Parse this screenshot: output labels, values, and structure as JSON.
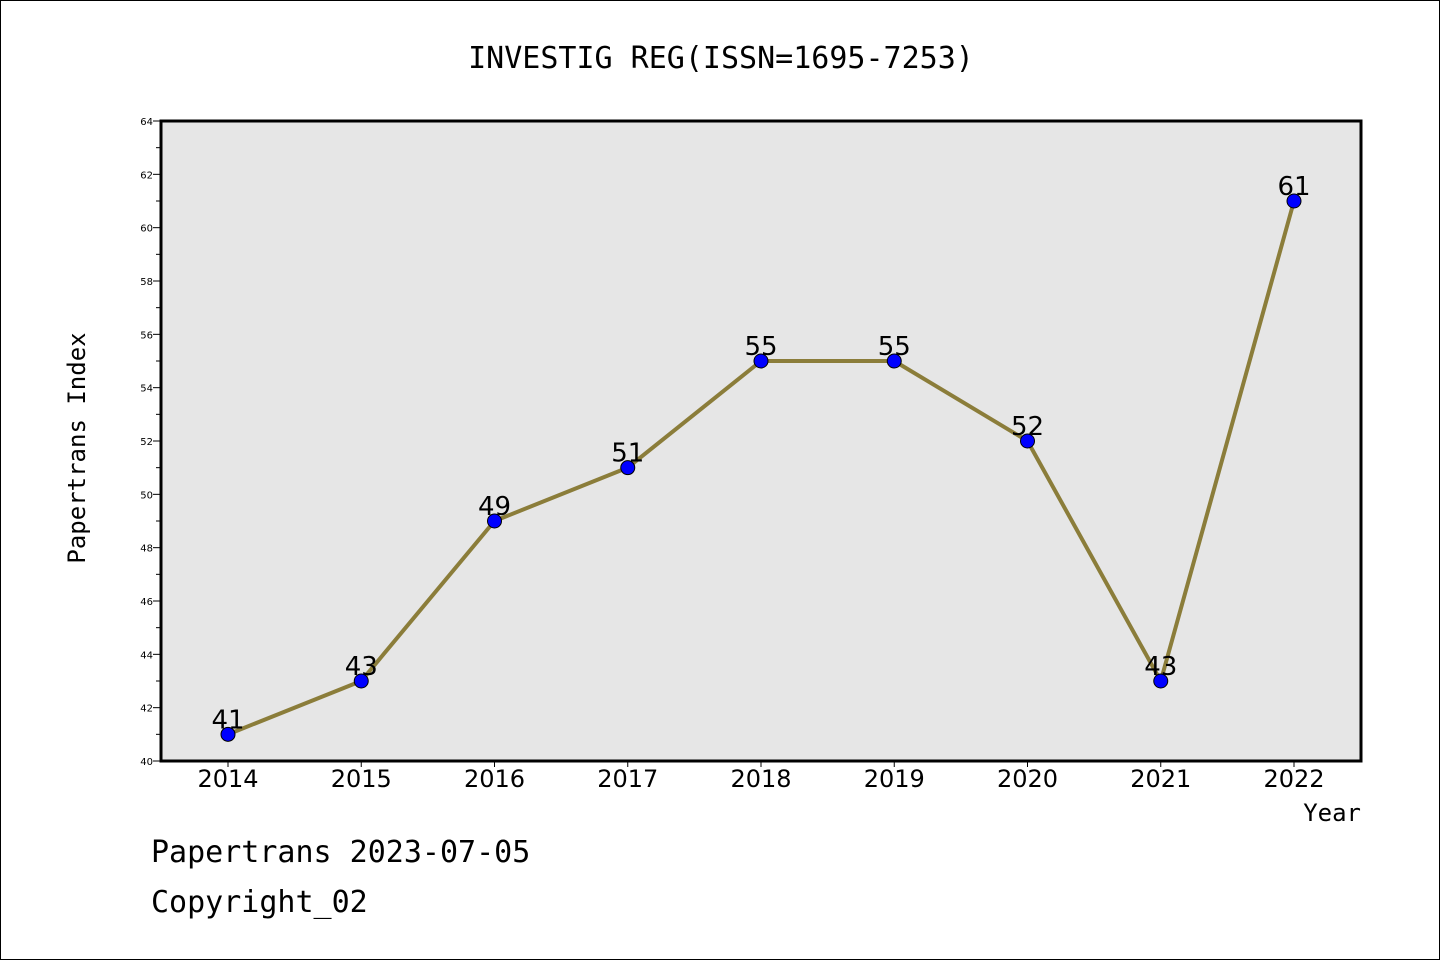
{
  "chart_data": {
    "type": "line",
    "title": "INVESTIG REG(ISSN=1695-7253)",
    "xlabel": "Year",
    "ylabel": "Papertrans Index",
    "categories": [
      "2014",
      "2015",
      "2016",
      "2017",
      "2018",
      "2019",
      "2020",
      "2021",
      "2022"
    ],
    "values": [
      41,
      43,
      49,
      51,
      55,
      55,
      52,
      43,
      61
    ],
    "data_labels": [
      "41",
      "43",
      "49",
      "51",
      "55",
      "55",
      "52",
      "43",
      "61"
    ],
    "ylim": [
      40,
      64
    ],
    "yticks": [
      "40",
      "42",
      "44",
      "46",
      "48",
      "50",
      "52",
      "54",
      "56",
      "58",
      "60",
      "62",
      "64"
    ],
    "grid": false,
    "legend": "none",
    "colors": {
      "line": "#8b7d3a",
      "marker": "#0000ff",
      "plot_background": "#e6e6e6",
      "axis": "#000000"
    }
  },
  "footer": {
    "date_line": "Papertrans 2023-07-05",
    "copyright": "Copyright_02"
  }
}
